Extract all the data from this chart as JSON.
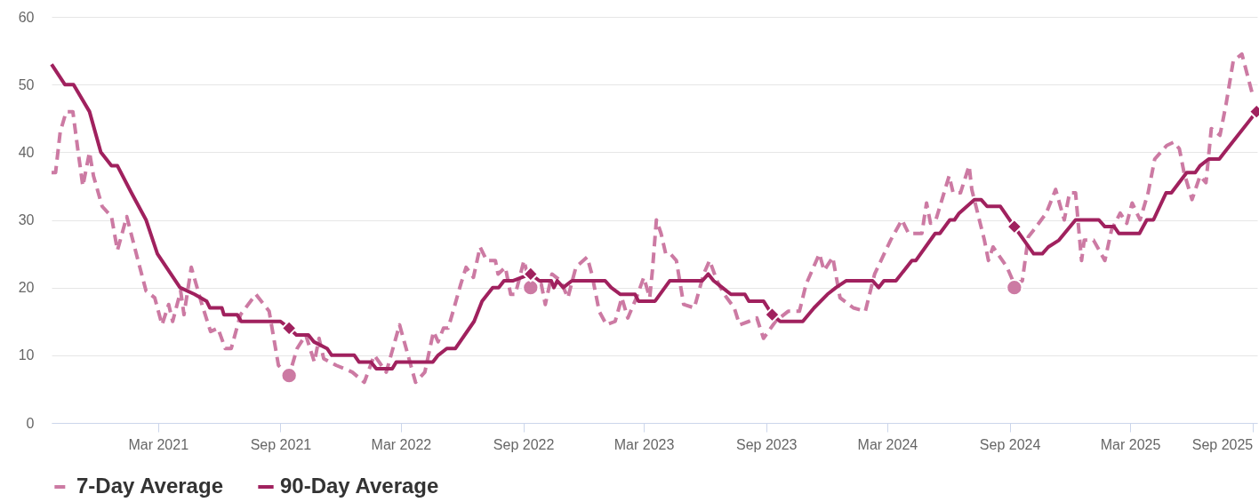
{
  "chart_data": {
    "type": "line",
    "xlim": [
      "2020-09-22",
      "2025-09-08"
    ],
    "xticks": [
      {
        "value": "2021-03-01",
        "label": "Mar 2021"
      },
      {
        "value": "2021-09-01",
        "label": "Sep 2021"
      },
      {
        "value": "2022-03-01",
        "label": "Mar 2022"
      },
      {
        "value": "2022-09-01",
        "label": "Sep 2022"
      },
      {
        "value": "2023-03-01",
        "label": "Mar 2023"
      },
      {
        "value": "2023-09-01",
        "label": "Sep 2023"
      },
      {
        "value": "2024-03-01",
        "label": "Mar 2024"
      },
      {
        "value": "2024-09-01",
        "label": "Sep 2024"
      },
      {
        "value": "2025-03-01",
        "label": "Mar 2025"
      },
      {
        "value": "2025-09-01",
        "label": "Sep 2025"
      }
    ],
    "ylim": [
      0,
      60
    ],
    "yticks": [
      0,
      10,
      20,
      30,
      40,
      50,
      60
    ],
    "grid": "y",
    "legend": "bottom",
    "series": [
      {
        "name": "7-Day Average",
        "line_style": "dashed",
        "color": "#cc7aa3",
        "x": [
          "2020-09-22",
          "2020-09-28",
          "2020-10-05",
          "2020-10-14",
          "2020-10-24",
          "2020-11-01",
          "2020-11-08",
          "2020-11-18",
          "2020-11-24",
          "2020-12-07",
          "2020-12-21",
          "2020-12-30",
          "2021-01-13",
          "2021-01-26",
          "2021-02-11",
          "2021-02-24",
          "2021-03-07",
          "2021-03-17",
          "2021-03-23",
          "2021-04-04",
          "2021-04-09",
          "2021-04-20",
          "2021-05-06",
          "2021-05-19",
          "2021-05-30",
          "2021-06-10",
          "2021-06-19",
          "2021-07-03",
          "2021-07-26",
          "2021-08-15",
          "2021-08-29",
          "2021-09-14",
          "2021-09-26",
          "2021-10-09",
          "2021-10-22",
          "2021-10-29",
          "2021-11-05",
          "2021-11-24",
          "2021-12-07",
          "2021-12-18",
          "2022-01-05",
          "2022-01-20",
          "2022-02-07",
          "2022-02-27",
          "2022-03-23",
          "2022-04-06",
          "2022-04-19",
          "2022-04-26",
          "2022-05-04",
          "2022-05-11",
          "2022-05-17",
          "2022-05-30",
          "2022-06-07",
          "2022-06-18",
          "2022-06-28",
          "2022-07-08",
          "2022-07-21",
          "2022-07-25",
          "2022-08-05",
          "2022-08-13",
          "2022-08-20",
          "2022-09-02",
          "2022-09-12",
          "2022-09-28",
          "2022-10-04",
          "2022-10-14",
          "2022-10-27",
          "2022-11-07",
          "2022-11-19",
          "2022-12-06",
          "2022-12-13",
          "2022-12-24",
          "2023-01-04",
          "2023-01-17",
          "2023-01-27",
          "2023-02-05",
          "2023-02-18",
          "2023-03-01",
          "2023-03-10",
          "2023-03-14",
          "2023-03-20",
          "2023-03-27",
          "2023-04-03",
          "2023-04-10",
          "2023-04-19",
          "2023-04-30",
          "2023-05-16",
          "2023-05-30",
          "2023-06-08",
          "2023-06-19",
          "2023-06-30",
          "2023-07-15",
          "2023-07-23",
          "2023-08-06",
          "2023-08-18",
          "2023-08-28",
          "2023-09-15",
          "2023-10-04",
          "2023-10-21",
          "2023-10-31",
          "2023-11-20",
          "2023-11-27",
          "2023-12-10",
          "2023-12-21",
          "2024-01-10",
          "2024-01-28",
          "2024-02-11",
          "2024-03-06",
          "2024-03-23",
          "2024-04-02",
          "2024-04-22",
          "2024-04-29",
          "2024-05-05",
          "2024-05-13",
          "2024-06-02",
          "2024-06-08",
          "2024-06-19",
          "2024-07-02",
          "2024-07-06",
          "2024-07-25",
          "2024-07-31",
          "2024-08-07",
          "2024-08-28",
          "2024-09-08",
          "2024-09-20",
          "2024-09-29",
          "2024-10-07",
          "2024-10-26",
          "2024-11-09",
          "2024-11-22",
          "2024-11-30",
          "2024-12-09",
          "2024-12-13",
          "2024-12-18",
          "2024-12-22",
          "2025-01-05",
          "2025-01-22",
          "2025-02-01",
          "2025-02-14",
          "2025-02-24",
          "2025-03-04",
          "2025-03-16",
          "2025-03-28",
          "2025-04-07",
          "2025-04-25",
          "2025-05-06",
          "2025-05-14",
          "2025-05-21",
          "2025-06-02",
          "2025-06-14",
          "2025-06-23",
          "2025-07-01",
          "2025-07-14",
          "2025-07-23",
          "2025-08-03",
          "2025-08-16",
          "2025-09-01"
        ],
        "values": [
          37,
          37,
          43,
          46,
          46,
          40,
          35,
          40,
          36.5,
          32,
          30.5,
          25.5,
          30.5,
          25.5,
          19.5,
          18.5,
          14.5,
          17.5,
          15,
          19.5,
          16,
          23,
          17.5,
          13.5,
          14,
          11,
          11,
          16,
          19,
          16.5,
          8.5,
          7,
          11,
          13,
          9,
          12.5,
          9.5,
          8.5,
          8,
          7.5,
          6,
          10,
          7.5,
          14.5,
          6,
          7.5,
          13.5,
          12,
          14,
          14,
          16,
          20.5,
          23,
          21.5,
          26,
          24,
          24,
          22,
          23,
          19,
          19,
          24,
          20,
          20.5,
          17.5,
          22,
          21,
          18.5,
          23,
          24.5,
          22,
          16.5,
          14.5,
          15,
          18.5,
          15.5,
          18.5,
          21.5,
          18.5,
          22.5,
          30,
          28,
          25,
          25,
          24,
          17.5,
          17,
          22,
          24,
          21,
          19,
          17,
          14.5,
          15,
          15.5,
          12.5,
          15,
          16.5,
          16.5,
          20.5,
          25,
          22.5,
          24.5,
          18.5,
          17,
          16.5,
          22,
          27,
          30,
          28,
          28,
          32.5,
          29.5,
          30,
          36.5,
          34,
          34,
          38,
          34.5,
          27,
          24,
          26,
          23,
          20.5,
          21,
          27.5,
          28.5,
          31,
          34.5,
          30,
          34,
          34,
          29.5,
          24,
          27,
          27,
          24,
          28.5,
          31,
          29.5,
          32.5,
          30,
          34,
          39,
          41,
          41.5,
          40.5,
          37,
          33,
          36.5,
          35.5,
          43.5,
          42.5,
          47,
          53.5,
          54.5,
          48.5
        ]
      },
      {
        "name": "90-Day Average",
        "line_style": "solid",
        "color": "#a0215e",
        "x": [
          "2020-09-22",
          "2020-10-12",
          "2020-10-25",
          "2020-11-18",
          "2020-12-05",
          "2020-12-21",
          "2020-12-30",
          "2021-01-20",
          "2021-02-11",
          "2021-02-28",
          "2021-04-03",
          "2021-04-25",
          "2021-05-13",
          "2021-05-18",
          "2021-06-05",
          "2021-06-08",
          "2021-06-28",
          "2021-07-04",
          "2021-09-01",
          "2021-09-14",
          "2021-09-25",
          "2021-10-13",
          "2021-10-21",
          "2021-11-10",
          "2021-11-17",
          "2021-12-21",
          "2021-12-28",
          "2022-01-15",
          "2022-01-23",
          "2022-02-16",
          "2022-02-22",
          "2022-04-18",
          "2022-04-26",
          "2022-05-09",
          "2022-05-22",
          "2022-06-19",
          "2022-07-01",
          "2022-07-17",
          "2022-07-26",
          "2022-08-03",
          "2022-08-16",
          "2022-09-12",
          "2022-09-25",
          "2022-10-13",
          "2022-10-17",
          "2022-10-22",
          "2022-10-31",
          "2022-11-13",
          "2023-01-02",
          "2023-01-11",
          "2023-01-25",
          "2023-02-16",
          "2023-02-21",
          "2023-03-18",
          "2023-04-09",
          "2023-05-28",
          "2023-06-06",
          "2023-06-14",
          "2023-06-27",
          "2023-07-10",
          "2023-07-31",
          "2023-08-06",
          "2023-08-28",
          "2023-09-10",
          "2023-09-22",
          "2023-10-26",
          "2023-11-12",
          "2023-12-02",
          "2023-12-15",
          "2023-12-30",
          "2024-02-08",
          "2024-02-17",
          "2024-02-25",
          "2024-03-14",
          "2024-04-07",
          "2024-04-13",
          "2024-05-12",
          "2024-05-19",
          "2024-06-03",
          "2024-06-10",
          "2024-06-17",
          "2024-07-10",
          "2024-07-20",
          "2024-07-29",
          "2024-08-18",
          "2024-09-08",
          "2024-10-07",
          "2024-10-20",
          "2024-10-29",
          "2024-11-14",
          "2024-12-09",
          "2025-01-13",
          "2025-01-22",
          "2025-02-05",
          "2025-02-12",
          "2025-03-15",
          "2025-03-26",
          "2025-04-05",
          "2025-04-24",
          "2025-05-02",
          "2025-05-25",
          "2025-06-07",
          "2025-06-14",
          "2025-06-27",
          "2025-07-13",
          "2025-07-21",
          "2025-09-07"
        ],
        "values": [
          53,
          50,
          50,
          46,
          40,
          38,
          38,
          34,
          30,
          25,
          20,
          19,
          18,
          17,
          17,
          16,
          16,
          15,
          15,
          14,
          13,
          13,
          12,
          11,
          10,
          10,
          9,
          9,
          8,
          8,
          9,
          9,
          10,
          11,
          11,
          15,
          18,
          20,
          20,
          21,
          21,
          22,
          21,
          21,
          20,
          21,
          20,
          21,
          21,
          20,
          19,
          19,
          18,
          18,
          21,
          21,
          22,
          21,
          20,
          19,
          19,
          18,
          18,
          16,
          15,
          15,
          17,
          19,
          20,
          21,
          21,
          20,
          21,
          21,
          24,
          24,
          28,
          28,
          30,
          30,
          31,
          33,
          33,
          32,
          32,
          29,
          25,
          25,
          26,
          27,
          30,
          30,
          29,
          29,
          28,
          28,
          30,
          30,
          34,
          34,
          37,
          37,
          38,
          39,
          39,
          40,
          46
        ]
      },
      {
        "type": "scatter",
        "marker": "circle",
        "color": "#cc7aa3",
        "x": [
          "2021-09-14",
          "2022-09-12",
          "2024-09-08"
        ],
        "values": [
          7,
          20,
          20
        ]
      },
      {
        "type": "scatter",
        "marker": "diamond",
        "color": "#a0215e",
        "x": [
          "2021-09-14",
          "2022-09-12",
          "2023-09-10",
          "2024-09-08",
          "2025-09-07"
        ],
        "values": [
          14,
          22,
          16,
          29,
          46
        ]
      }
    ]
  }
}
